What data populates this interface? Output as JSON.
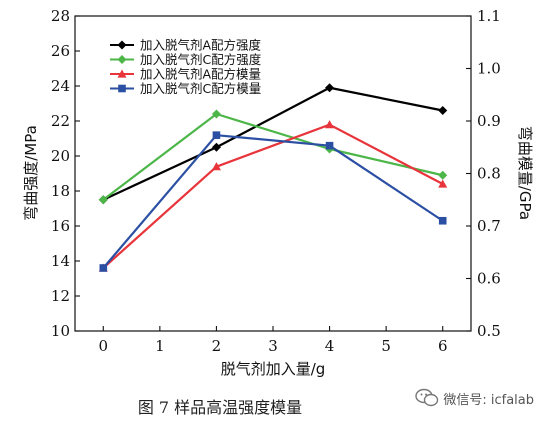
{
  "chart_data": {
    "type": "line",
    "xlabel": "脱气剂加入量/g",
    "ylabel_left": "弯曲强度/MPa",
    "ylabel_right": "弯曲模量/GPa",
    "xlim": [
      -0.5,
      6.5
    ],
    "xticks": [
      0,
      1,
      2,
      3,
      4,
      5,
      6
    ],
    "ylim_left": [
      10,
      28
    ],
    "yticks_left": [
      10,
      12,
      14,
      16,
      18,
      20,
      22,
      24,
      26,
      28
    ],
    "ylim_right": [
      0.5,
      1.1
    ],
    "yticks_right": [
      "0.5",
      "0.6",
      "0.7",
      "0.8",
      "0.9",
      "1.0",
      "1.1"
    ],
    "legend_position": "top-left",
    "series": [
      {
        "name": "加入脱气剂A配方强度",
        "axis": "left",
        "color": "#000000",
        "marker": "diamond",
        "x": [
          0,
          2,
          4,
          6
        ],
        "y": [
          17.5,
          20.5,
          23.9,
          22.6
        ]
      },
      {
        "name": "加入脱气剂C配方强度",
        "axis": "left",
        "color": "#4cb648",
        "marker": "diamond",
        "x": [
          0,
          2,
          4,
          6
        ],
        "y": [
          17.5,
          22.4,
          20.4,
          18.9
        ]
      },
      {
        "name": "加入脱气剂A配方模量",
        "axis": "right",
        "color": "#e8343b",
        "marker": "triangle",
        "x": [
          0,
          2,
          4,
          6
        ],
        "y": [
          0.62,
          0.813,
          0.893,
          0.78
        ]
      },
      {
        "name": "加入脱气剂C配方模量",
        "axis": "right",
        "color": "#2b4fa3",
        "marker": "square",
        "x": [
          0,
          2,
          4,
          6
        ],
        "y": [
          0.62,
          0.873,
          0.853,
          0.71
        ]
      }
    ]
  },
  "caption": "图 7   样品高温强度模量",
  "watermark": {
    "text": "微信号: icfalab",
    "icon": "wechat-icon"
  }
}
